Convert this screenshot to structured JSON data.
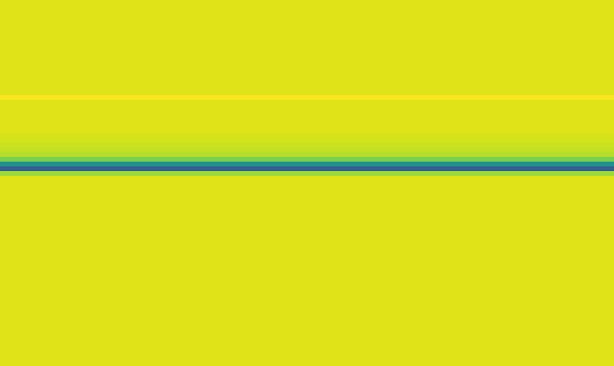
{
  "chart_data": {
    "type": "heatmap",
    "color": "viridis",
    "tick_labels": false,
    "xlim": [
      0,
      5
    ],
    "ylim": [
      0,
      77
    ],
    "zlim": [
      0,
      1
    ],
    "x": [
      0,
      1,
      2,
      3,
      4,
      5
    ],
    "y": [
      0,
      1,
      2,
      3,
      4,
      5,
      6,
      7,
      8,
      9,
      10,
      11,
      12,
      13,
      14,
      15,
      16,
      17,
      18,
      19,
      20,
      21,
      22,
      23,
      24,
      25,
      26,
      27,
      28,
      29,
      30,
      31,
      32,
      33,
      34,
      35,
      36,
      37,
      38,
      39,
      40,
      41,
      42,
      43,
      44,
      45,
      46,
      47,
      48,
      49,
      50,
      51,
      52,
      53,
      54,
      55,
      56,
      57,
      58,
      59,
      60,
      61,
      62,
      63,
      64,
      65,
      66,
      67,
      68,
      69,
      70,
      71,
      72,
      73,
      74,
      75,
      76,
      77
    ],
    "cells": [
      [
        0.95,
        0.95,
        0.95,
        0.95,
        0.95
      ],
      [
        0.95,
        0.95,
        0.95,
        0.95,
        0.95
      ],
      [
        0.95,
        0.95,
        0.95,
        0.95,
        0.95
      ],
      [
        0.95,
        0.95,
        0.95,
        0.95,
        0.95
      ],
      [
        0.95,
        0.95,
        0.95,
        0.95,
        0.95
      ],
      [
        0.95,
        0.95,
        0.95,
        0.95,
        0.95
      ],
      [
        0.95,
        0.95,
        0.95,
        0.95,
        0.95
      ],
      [
        0.95,
        0.95,
        0.95,
        0.95,
        0.95
      ],
      [
        0.95,
        0.95,
        0.95,
        0.95,
        0.95
      ],
      [
        0.95,
        0.95,
        0.95,
        0.95,
        0.95
      ],
      [
        0.95,
        0.95,
        0.95,
        0.95,
        0.95
      ],
      [
        0.95,
        0.95,
        0.95,
        0.95,
        0.95
      ],
      [
        0.95,
        0.95,
        0.95,
        0.95,
        0.95
      ],
      [
        0.95,
        0.95,
        0.95,
        0.95,
        0.95
      ],
      [
        0.95,
        0.95,
        0.95,
        0.95,
        0.95
      ],
      [
        0.95,
        0.95,
        0.95,
        0.95,
        0.95
      ],
      [
        0.95,
        0.95,
        0.95,
        0.95,
        0.95
      ],
      [
        0.95,
        0.95,
        0.95,
        0.95,
        0.95
      ],
      [
        0.95,
        0.95,
        0.95,
        0.95,
        0.95
      ],
      [
        0.95,
        0.95,
        0.95,
        0.95,
        0.95
      ],
      [
        0.99,
        0.99,
        0.99,
        0.99,
        0.99
      ],
      [
        0.95,
        0.95,
        0.95,
        0.95,
        0.95
      ],
      [
        0.95,
        0.95,
        0.95,
        0.95,
        0.95
      ],
      [
        0.95,
        0.95,
        0.95,
        0.95,
        0.95
      ],
      [
        0.95,
        0.95,
        0.95,
        0.95,
        0.95
      ],
      [
        0.95,
        0.95,
        0.95,
        0.95,
        0.95
      ],
      [
        0.95,
        0.95,
        0.95,
        0.95,
        0.95
      ],
      [
        0.95,
        0.95,
        0.95,
        0.95,
        0.95
      ],
      [
        0.94,
        0.94,
        0.94,
        0.94,
        0.94
      ],
      [
        0.93,
        0.93,
        0.93,
        0.93,
        0.93
      ],
      [
        0.92,
        0.92,
        0.92,
        0.92,
        0.92
      ],
      [
        0.91,
        0.91,
        0.91,
        0.91,
        0.91
      ],
      [
        0.89,
        0.89,
        0.89,
        0.89,
        0.89
      ],
      [
        0.8,
        0.8,
        0.8,
        0.8,
        0.8
      ],
      [
        0.5,
        0.5,
        0.5,
        0.5,
        0.5
      ],
      [
        0.3,
        0.3,
        0.3,
        0.3,
        0.3
      ],
      [
        0.85,
        0.85,
        0.85,
        0.85,
        0.85
      ],
      [
        0.95,
        0.95,
        0.95,
        0.95,
        0.95
      ],
      [
        0.95,
        0.95,
        0.95,
        0.95,
        0.95
      ],
      [
        0.95,
        0.95,
        0.95,
        0.95,
        0.95
      ],
      [
        0.95,
        0.95,
        0.95,
        0.95,
        0.95
      ],
      [
        0.95,
        0.95,
        0.95,
        0.95,
        0.95
      ],
      [
        0.95,
        0.95,
        0.95,
        0.95,
        0.95
      ],
      [
        0.95,
        0.95,
        0.95,
        0.95,
        0.95
      ],
      [
        0.95,
        0.95,
        0.95,
        0.95,
        0.95
      ],
      [
        0.95,
        0.95,
        0.95,
        0.95,
        0.95
      ],
      [
        0.95,
        0.95,
        0.95,
        0.95,
        0.95
      ],
      [
        0.95,
        0.95,
        0.95,
        0.95,
        0.95
      ],
      [
        0.95,
        0.95,
        0.95,
        0.95,
        0.95
      ],
      [
        0.95,
        0.95,
        0.95,
        0.95,
        0.95
      ],
      [
        0.95,
        0.95,
        0.95,
        0.95,
        0.95
      ],
      [
        0.95,
        0.95,
        0.95,
        0.95,
        0.95
      ],
      [
        0.95,
        0.95,
        0.95,
        0.95,
        0.95
      ],
      [
        0.95,
        0.95,
        0.95,
        0.95,
        0.95
      ],
      [
        0.95,
        0.95,
        0.95,
        0.95,
        0.95
      ],
      [
        0.95,
        0.95,
        0.95,
        0.95,
        0.95
      ],
      [
        0.95,
        0.95,
        0.95,
        0.95,
        0.95
      ],
      [
        0.95,
        0.95,
        0.95,
        0.95,
        0.95
      ],
      [
        0.95,
        0.95,
        0.95,
        0.95,
        0.95
      ],
      [
        0.95,
        0.95,
        0.95,
        0.95,
        0.95
      ],
      [
        0.95,
        0.95,
        0.95,
        0.95,
        0.95
      ],
      [
        0.95,
        0.95,
        0.95,
        0.95,
        0.95
      ],
      [
        0.95,
        0.95,
        0.95,
        0.95,
        0.95
      ],
      [
        0.95,
        0.95,
        0.95,
        0.95,
        0.95
      ],
      [
        0.95,
        0.95,
        0.95,
        0.95,
        0.95
      ],
      [
        0.95,
        0.95,
        0.95,
        0.95,
        0.95
      ],
      [
        0.95,
        0.95,
        0.95,
        0.95,
        0.95
      ],
      [
        0.95,
        0.95,
        0.95,
        0.95,
        0.95
      ],
      [
        0.95,
        0.95,
        0.95,
        0.95,
        0.95
      ],
      [
        0.95,
        0.95,
        0.95,
        0.95,
        0.95
      ],
      [
        0.95,
        0.95,
        0.95,
        0.95,
        0.95
      ],
      [
        0.95,
        0.95,
        0.95,
        0.95,
        0.95
      ],
      [
        0.95,
        0.95,
        0.95,
        0.95,
        0.95
      ],
      [
        0.95,
        0.95,
        0.95,
        0.95,
        0.95
      ],
      [
        0.95,
        0.95,
        0.95,
        0.95,
        0.95
      ],
      [
        0.95,
        0.95,
        0.95,
        0.95,
        0.95
      ],
      [
        0.95,
        0.95,
        0.95,
        0.95,
        0.95
      ]
    ]
  }
}
